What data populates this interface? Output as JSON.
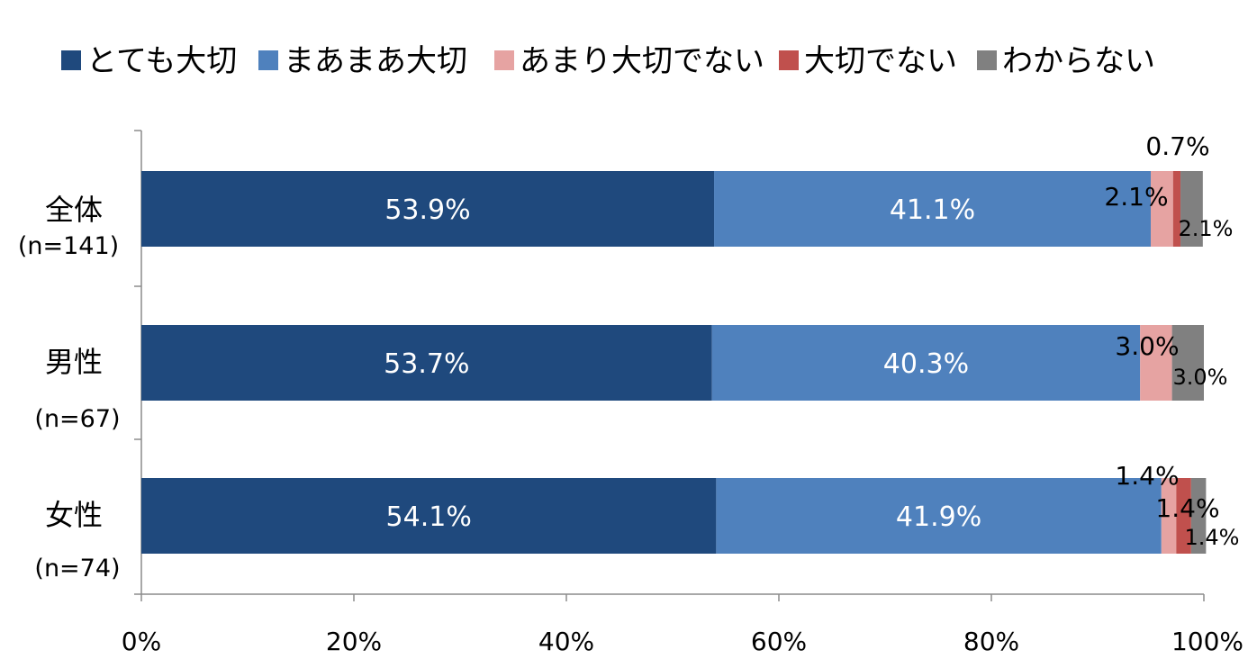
{
  "chart_data": {
    "type": "bar",
    "orientation": "horizontal",
    "stacked": true,
    "percent_stacked": true,
    "categories": [
      {
        "label": "全体",
        "n": "(n=141)"
      },
      {
        "label": "男性",
        "n": "(n=67)"
      },
      {
        "label": "女性",
        "n": "(n=74)"
      }
    ],
    "series": [
      {
        "name": "とても大切",
        "color": "#1F497D",
        "values": [
          53.9,
          53.7,
          54.1
        ]
      },
      {
        "name": "まあまあ大切",
        "color": "#4F81BD",
        "values": [
          41.1,
          40.3,
          41.9
        ]
      },
      {
        "name": "あまり大切でない",
        "color": "#E6A3A2",
        "values": [
          2.1,
          3.0,
          1.4
        ]
      },
      {
        "name": "大切でない",
        "color": "#C0504D",
        "values": [
          0.7,
          0.0,
          1.4
        ]
      },
      {
        "name": "わからない",
        "color": "#808080",
        "values": [
          2.1,
          3.0,
          1.4
        ]
      }
    ],
    "data_labels": [
      [
        "53.9%",
        "41.1%",
        "2.1%",
        "0.7%",
        "2.1%"
      ],
      [
        "53.7%",
        "40.3%",
        "3.0%",
        "",
        "3.0%"
      ],
      [
        "54.1%",
        "41.9%",
        "1.4%",
        "1.4%",
        "1.4%"
      ]
    ],
    "xlim": [
      0,
      100
    ],
    "x_ticks": [
      "0%",
      "20%",
      "40%",
      "60%",
      "80%",
      "100%"
    ],
    "legend_position": "top",
    "grid": false
  }
}
